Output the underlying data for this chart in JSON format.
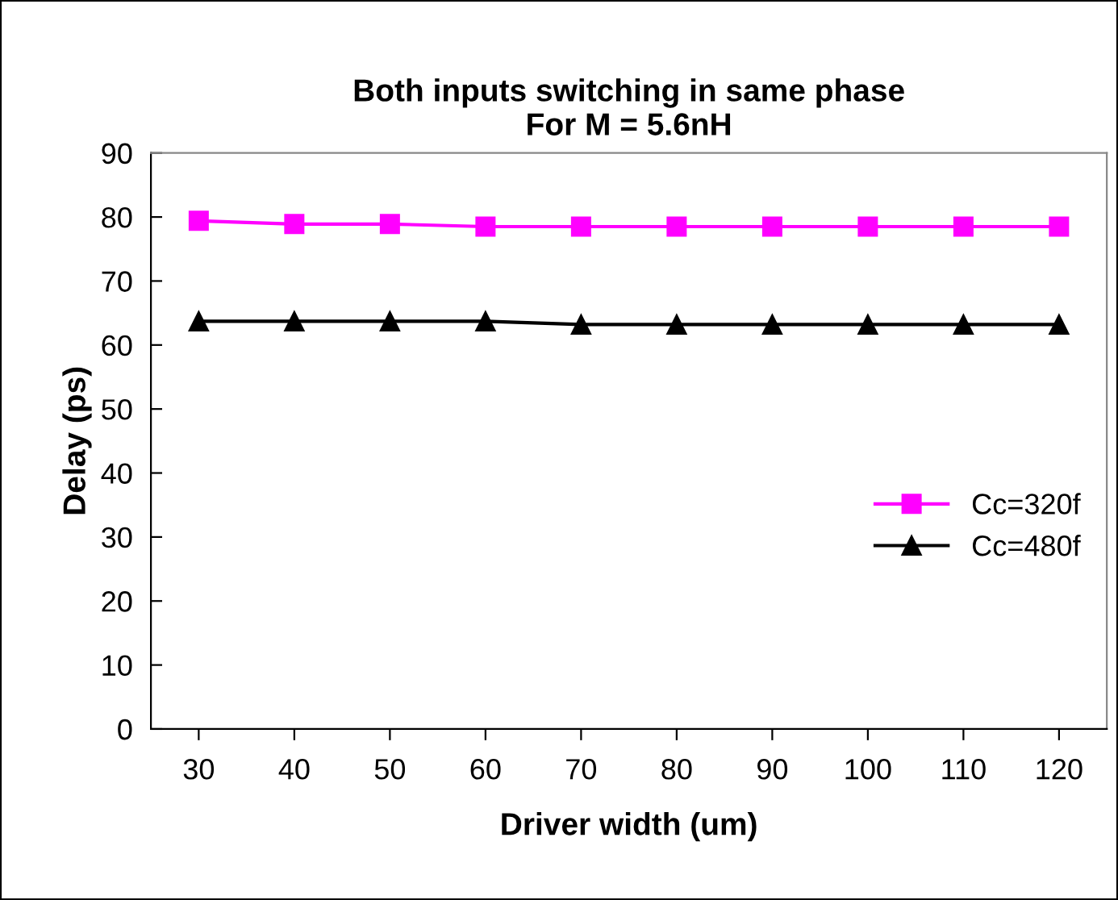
{
  "chart_data": {
    "type": "line",
    "title": "Both inputs switching in same phase\nFor M = 5.6nH",
    "xlabel": "Driver width (um)",
    "ylabel": "Delay (ps)",
    "categories": [
      "30",
      "40",
      "50",
      "60",
      "70",
      "80",
      "90",
      "100",
      "110",
      "120"
    ],
    "series": [
      {
        "name": "Cc=320f",
        "color": "#ff00ff",
        "marker": "square",
        "values": [
          79.4,
          78.9,
          78.9,
          78.5,
          78.5,
          78.5,
          78.5,
          78.5,
          78.5,
          78.5
        ]
      },
      {
        "name": "Cc=480f",
        "color": "#000000",
        "marker": "triangle",
        "values": [
          63.7,
          63.7,
          63.7,
          63.7,
          63.2,
          63.2,
          63.2,
          63.2,
          63.2,
          63.2
        ]
      }
    ],
    "ylim": [
      0,
      90
    ],
    "yticks": [
      0,
      10,
      20,
      30,
      40,
      50,
      60,
      70,
      80,
      90
    ],
    "grid": false,
    "legend": "right",
    "line_style": "solid"
  }
}
